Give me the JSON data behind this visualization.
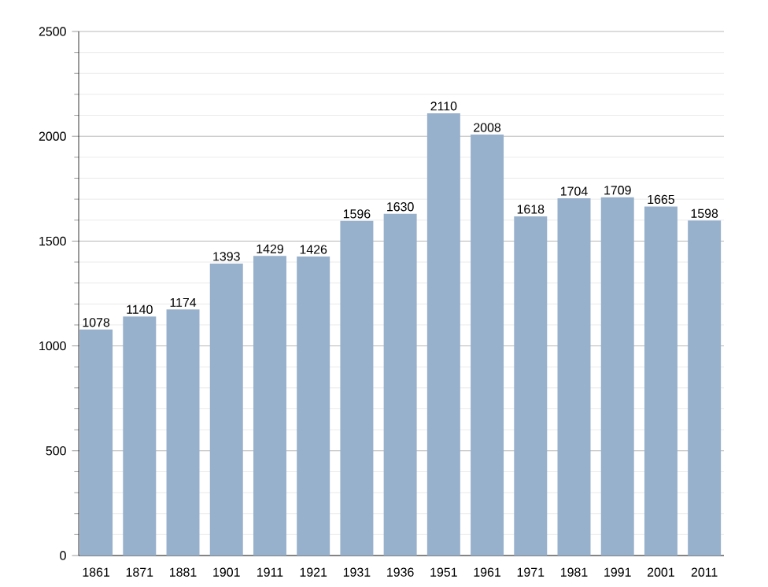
{
  "chart_data": {
    "type": "bar",
    "categories": [
      "1861",
      "1871",
      "1881",
      "1901",
      "1911",
      "1921",
      "1931",
      "1936",
      "1951",
      "1961",
      "1971",
      "1981",
      "1991",
      "2001",
      "2011"
    ],
    "values": [
      1078,
      1140,
      1174,
      1393,
      1429,
      1426,
      1596,
      1630,
      2110,
      2008,
      1618,
      1704,
      1709,
      1665,
      1598
    ],
    "color": "#97b0cc",
    "ylim": [
      0,
      2500
    ],
    "yticks": [
      0,
      500,
      1000,
      1500,
      2000,
      2500
    ],
    "grid": "y",
    "data_labels": true
  }
}
